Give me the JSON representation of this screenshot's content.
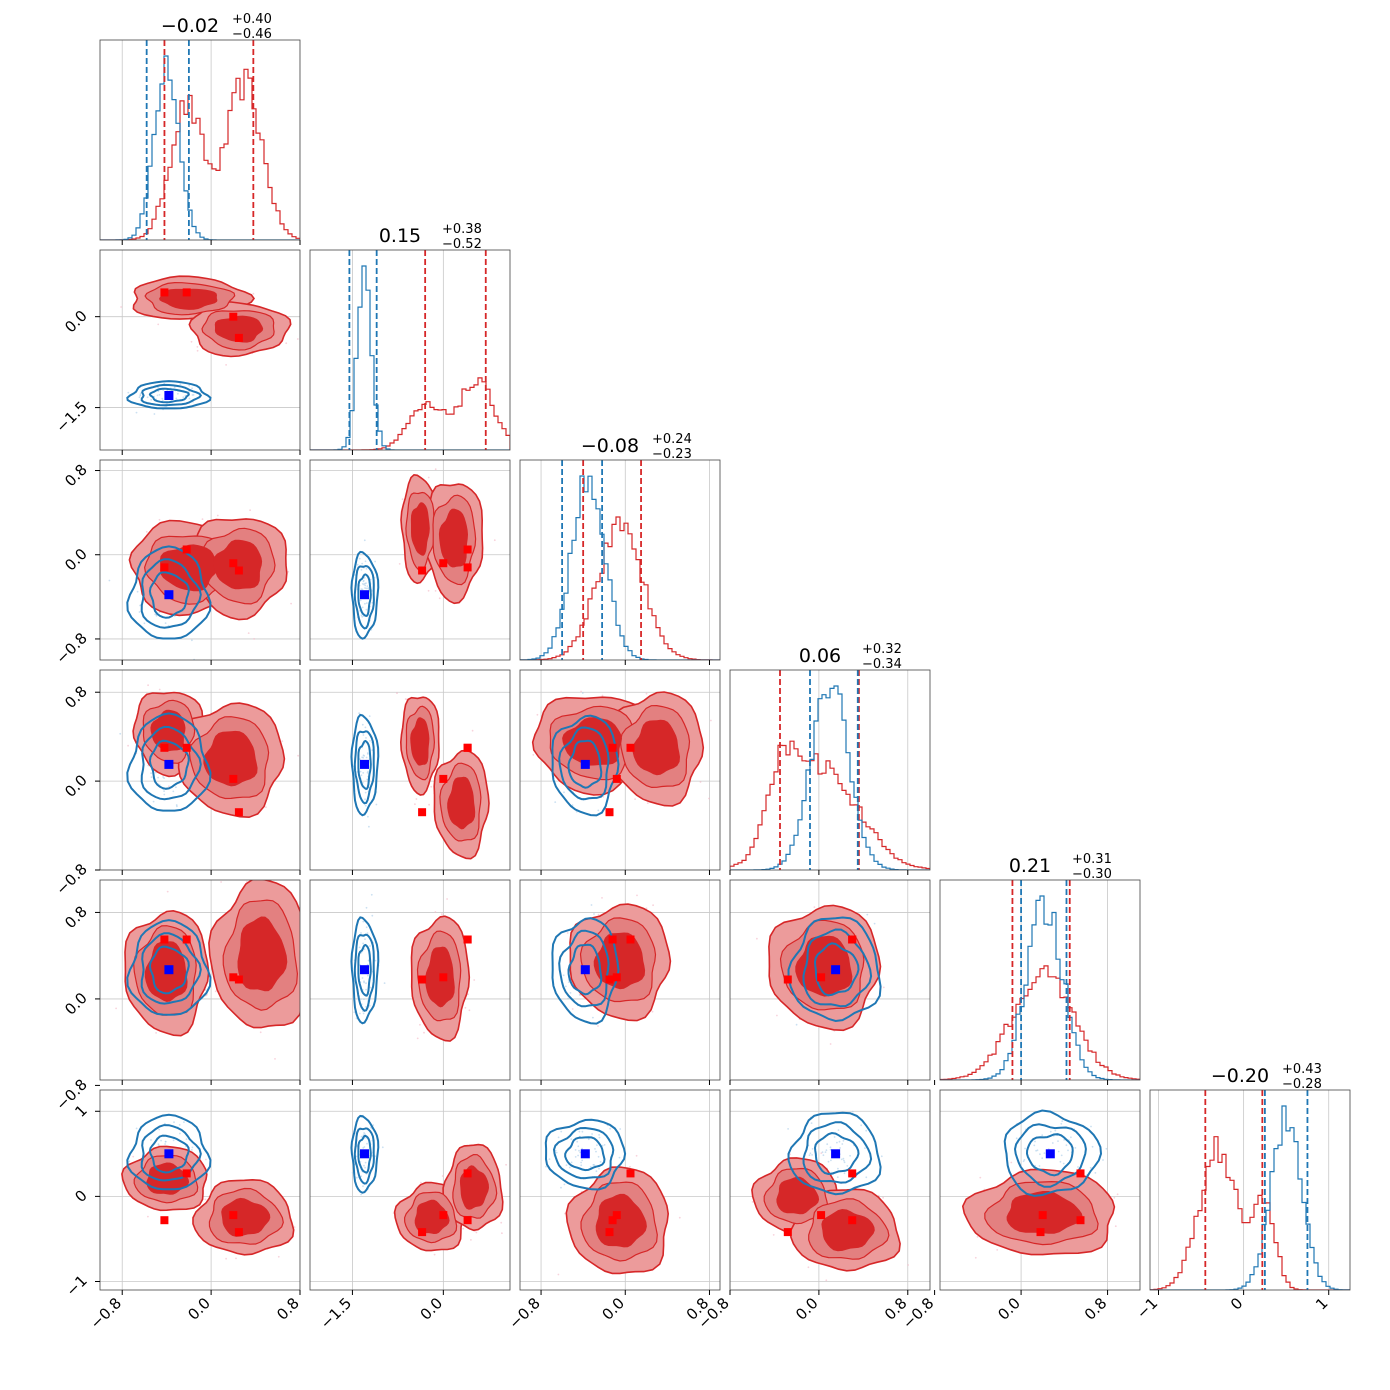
{
  "chart_data": {
    "type": "corner",
    "n_params": 6,
    "grid": true,
    "colors": {
      "red": "#d62728",
      "red_light": "#ec9b9b",
      "blue": "#1f77b4",
      "marker_red": "#ff0000",
      "marker_blue": "#0000ff"
    },
    "titles": [
      {
        "main": "−0.02",
        "sup": "+0.40",
        "sub": "−0.46"
      },
      {
        "main": "0.15",
        "sup": "+0.38",
        "sub": "−0.52"
      },
      {
        "main": "−0.08",
        "sup": "+0.24",
        "sub": "−0.23"
      },
      {
        "main": "0.06",
        "sup": "+0.32",
        "sub": "−0.34"
      },
      {
        "main": "0.21",
        "sup": "+0.31",
        "sub": "−0.30"
      },
      {
        "main": "−0.20",
        "sup": "+0.43",
        "sub": "−0.28"
      }
    ],
    "ranges": [
      [
        -1.0,
        0.8
      ],
      [
        -2.2,
        1.1
      ],
      [
        -1.0,
        0.9
      ],
      [
        -0.8,
        1.0
      ],
      [
        -0.75,
        1.1
      ],
      [
        -1.1,
        1.25
      ]
    ],
    "ticks": [
      {
        "values": [
          -0.8,
          0.0,
          0.8
        ],
        "labels": [
          "−0.8",
          "0.0",
          "0.8"
        ]
      },
      {
        "values": [
          -1.5,
          0.0
        ],
        "labels": [
          "−1.5",
          "0.0"
        ]
      },
      {
        "values": [
          -0.8,
          0.0,
          0.8
        ],
        "labels": [
          "−0.8",
          "0.0",
          "0.8"
        ]
      },
      {
        "values": [
          -0.8,
          0.0,
          0.8
        ],
        "labels": [
          "−0.8",
          "0.0",
          "0.8"
        ]
      },
      {
        "values": [
          -0.8,
          0.0,
          0.8
        ],
        "labels": [
          "−0.8",
          "0.0",
          "0.8"
        ]
      },
      {
        "values": [
          -1,
          0,
          1
        ],
        "labels": [
          "−1",
          "0",
          "1"
        ]
      }
    ],
    "quantiles": {
      "red": [
        [
          -0.42,
          0.38
        ],
        [
          -0.3,
          0.7
        ],
        [
          -0.4,
          0.15
        ],
        [
          -0.35,
          0.36
        ],
        [
          -0.08,
          0.45
        ],
        [
          -0.45,
          0.22
        ]
      ],
      "blue": [
        [
          -0.58,
          -0.2
        ],
        [
          -1.55,
          -1.1
        ],
        [
          -0.6,
          -0.22
        ],
        [
          -0.08,
          0.35
        ],
        [
          0.0,
          0.42
        ],
        [
          0.25,
          0.75
        ]
      ]
    },
    "markers_red": [
      [
        -0.42,
        -0.22,
        0.2,
        0.25
      ],
      [
        0.4,
        0.4,
        0.0,
        -0.35
      ],
      [
        -0.12,
        0.05,
        -0.08,
        -0.15
      ],
      [
        0.3,
        0.3,
        0.02,
        -0.28
      ],
      [
        0.55,
        0.55,
        0.2,
        0.18
      ],
      [
        -0.28,
        0.27,
        -0.22,
        -0.42
      ]
    ],
    "markers_blue": [
      -0.38,
      -1.3,
      -0.38,
      0.15,
      0.27,
      0.5
    ],
    "hist1d": {
      "red": [
        {
          "modes": [
            [
              -0.22,
              0.15,
              1.0
            ],
            [
              0.3,
              0.16,
              1.25
            ]
          ]
        },
        {
          "modes": [
            [
              -0.3,
              0.28,
              0.6
            ],
            [
              0.55,
              0.3,
              1.0
            ]
          ]
        },
        {
          "modes": [
            [
              -0.05,
              0.22,
              1.0
            ]
          ]
        },
        {
          "modes": [
            [
              0.05,
              0.32,
              1.0
            ],
            [
              -0.3,
              0.15,
              0.35
            ]
          ]
        },
        {
          "modes": [
            [
              0.2,
              0.28,
              1.0
            ]
          ]
        },
        {
          "modes": [
            [
              -0.3,
              0.22,
              1.0
            ],
            [
              0.25,
              0.12,
              0.35
            ]
          ]
        }
      ],
      "blue": [
        {
          "modes": [
            [
              -0.4,
              0.11,
              1.0
            ]
          ]
        },
        {
          "modes": [
            [
              -1.3,
              0.12,
              1.0
            ]
          ]
        },
        {
          "modes": [
            [
              -0.35,
              0.16,
              1.0
            ]
          ]
        },
        {
          "modes": [
            [
              0.1,
              0.17,
              1.0
            ]
          ]
        },
        {
          "modes": [
            [
              0.22,
              0.17,
              1.0
            ]
          ]
        },
        {
          "modes": [
            [
              0.5,
              0.18,
              1.0
            ]
          ]
        }
      ]
    },
    "blobs_red": [
      [
        {
          "cx": -0.2,
          "cy": 0.3,
          "rx": 0.42,
          "ry": 0.28
        },
        {
          "cx": 0.25,
          "cy": -0.2,
          "rx": 0.35,
          "ry": 0.35
        }
      ],
      [
        {
          "cx": -0.2,
          "cy": -0.12,
          "rx": 0.42,
          "ry": 0.35
        },
        {
          "cx": 0.25,
          "cy": -0.1,
          "rx": 0.35,
          "ry": 0.38
        }
      ],
      [
        {
          "cx": -0.38,
          "cy": 0.25,
          "rx": 0.25,
          "ry": 0.4
        },
        {
          "cx": 0.18,
          "cy": 0.15,
          "rx": 0.38,
          "ry": 0.45
        }
      ],
      [
        {
          "cx": -0.38,
          "cy": 0.45,
          "rx": 0.25,
          "ry": 0.3
        },
        {
          "cx": 0.18,
          "cy": 0.2,
          "rx": 0.38,
          "ry": 0.4
        }
      ],
      [
        {
          "cx": -0.38,
          "cy": 0.35,
          "rx": 0.25,
          "ry": 0.35
        },
        {
          "cx": 0.3,
          "cy": -0.2,
          "rx": 0.36,
          "ry": 0.38
        }
      ],
      [
        {
          "cx": -0.3,
          "cy": 0.35,
          "rx": 0.45,
          "ry": 0.35
        },
        {
          "cx": 0.3,
          "cy": 0.3,
          "rx": 0.35,
          "ry": 0.4
        }
      ],
      [
        {
          "cx": -0.4,
          "cy": 0.25,
          "rx": 0.3,
          "ry": 0.45
        },
        {
          "cx": 0.45,
          "cy": 0.4,
          "rx": 0.35,
          "ry": 0.55
        }
      ],
      [
        {
          "cx": -0.05,
          "cy": 0.2,
          "rx": 0.38,
          "ry": 0.45
        }
      ],
      [
        {
          "cx": -0.05,
          "cy": 0.35,
          "rx": 0.38,
          "ry": 0.42
        }
      ],
      [
        {
          "cx": 0.05,
          "cy": 0.3,
          "rx": 0.4,
          "ry": 0.45
        }
      ],
      [
        {
          "cx": -0.4,
          "cy": 0.2,
          "rx": 0.3,
          "ry": 0.3
        },
        {
          "cx": 0.3,
          "cy": -0.25,
          "rx": 0.35,
          "ry": 0.35
        }
      ],
      [
        {
          "cx": -0.2,
          "cy": -0.25,
          "rx": 0.45,
          "ry": 0.32
        },
        {
          "cx": 0.5,
          "cy": 0.1,
          "rx": 0.38,
          "ry": 0.4
        }
      ],
      [
        {
          "cx": -0.05,
          "cy": -0.3,
          "rx": 0.38,
          "ry": 0.5
        }
      ],
      [
        {
          "cx": -0.2,
          "cy": 0.0,
          "rx": 0.3,
          "ry": 0.35
        },
        {
          "cx": 0.25,
          "cy": -0.4,
          "rx": 0.38,
          "ry": 0.38
        }
      ],
      [
        {
          "cx": 0.2,
          "cy": -0.2,
          "rx": 0.55,
          "ry": 0.4
        }
      ]
    ],
    "blobs_blue": [
      {
        "cx": -0.38,
        "cy": -1.3,
        "rx": 0.28,
        "ry": 0.18
      },
      {
        "cx": -0.38,
        "cy": -0.38,
        "rx": 0.28,
        "ry": 0.35
      },
      {
        "cx": -1.3,
        "cy": -0.38,
        "rx": 0.17,
        "ry": 0.32
      },
      {
        "cx": -0.38,
        "cy": 0.15,
        "rx": 0.28,
        "ry": 0.35
      },
      {
        "cx": -1.3,
        "cy": 0.15,
        "rx": 0.17,
        "ry": 0.35
      },
      {
        "cx": -0.38,
        "cy": 0.15,
        "rx": 0.25,
        "ry": 0.35
      },
      {
        "cx": -0.38,
        "cy": 0.27,
        "rx": 0.28,
        "ry": 0.35
      },
      {
        "cx": -1.3,
        "cy": 0.27,
        "rx": 0.17,
        "ry": 0.38
      },
      {
        "cx": -0.38,
        "cy": 0.27,
        "rx": 0.25,
        "ry": 0.38
      },
      {
        "cx": 0.15,
        "cy": 0.27,
        "rx": 0.32,
        "ry": 0.38
      },
      {
        "cx": -0.38,
        "cy": 0.5,
        "rx": 0.28,
        "ry": 0.35
      },
      {
        "cx": -1.3,
        "cy": 0.5,
        "rx": 0.17,
        "ry": 0.35
      },
      {
        "cx": -0.38,
        "cy": 0.5,
        "rx": 0.3,
        "ry": 0.32
      },
      {
        "cx": 0.15,
        "cy": 0.5,
        "rx": 0.32,
        "ry": 0.38
      },
      {
        "cx": 0.27,
        "cy": 0.5,
        "rx": 0.35,
        "ry": 0.38
      }
    ]
  }
}
